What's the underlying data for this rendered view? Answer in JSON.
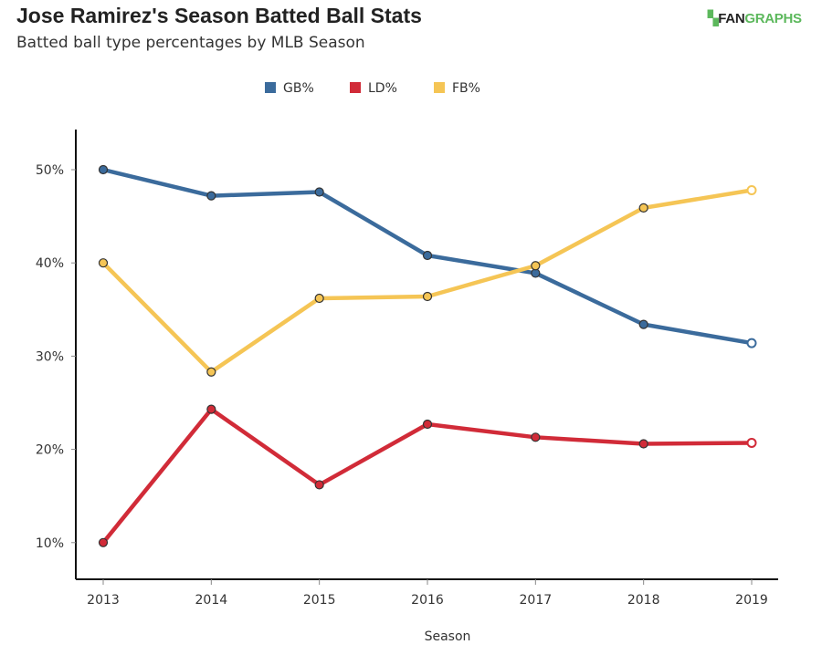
{
  "logo": {
    "prefix": "FAN",
    "suffix": "GRAPHS"
  },
  "chart_data": {
    "type": "line",
    "title": "Jose Ramirez's Season Batted Ball Stats",
    "subtitle": "Batted ball type percentages by MLB Season",
    "xlabel": "Season",
    "ylabel": "",
    "x": [
      2013,
      2014,
      2015,
      2016,
      2017,
      2018,
      2019
    ],
    "ylim": [
      5,
      54
    ],
    "yticks": [
      "10%",
      "20%",
      "30%",
      "40%",
      "50%"
    ],
    "ytick_values": [
      10,
      20,
      30,
      40,
      50
    ],
    "grid": false,
    "legend_position": "top-center",
    "series": [
      {
        "name": "GB%",
        "color": "#3b6b9c",
        "values": [
          50.0,
          47.2,
          47.6,
          40.8,
          38.9,
          33.4,
          31.4
        ]
      },
      {
        "name": "LD%",
        "color": "#d12b38",
        "values": [
          10.0,
          24.3,
          16.2,
          22.7,
          21.3,
          20.6,
          20.7
        ]
      },
      {
        "name": "FB%",
        "color": "#f5c555",
        "values": [
          40.0,
          28.3,
          36.2,
          36.4,
          39.7,
          45.9,
          47.8
        ]
      }
    ]
  }
}
